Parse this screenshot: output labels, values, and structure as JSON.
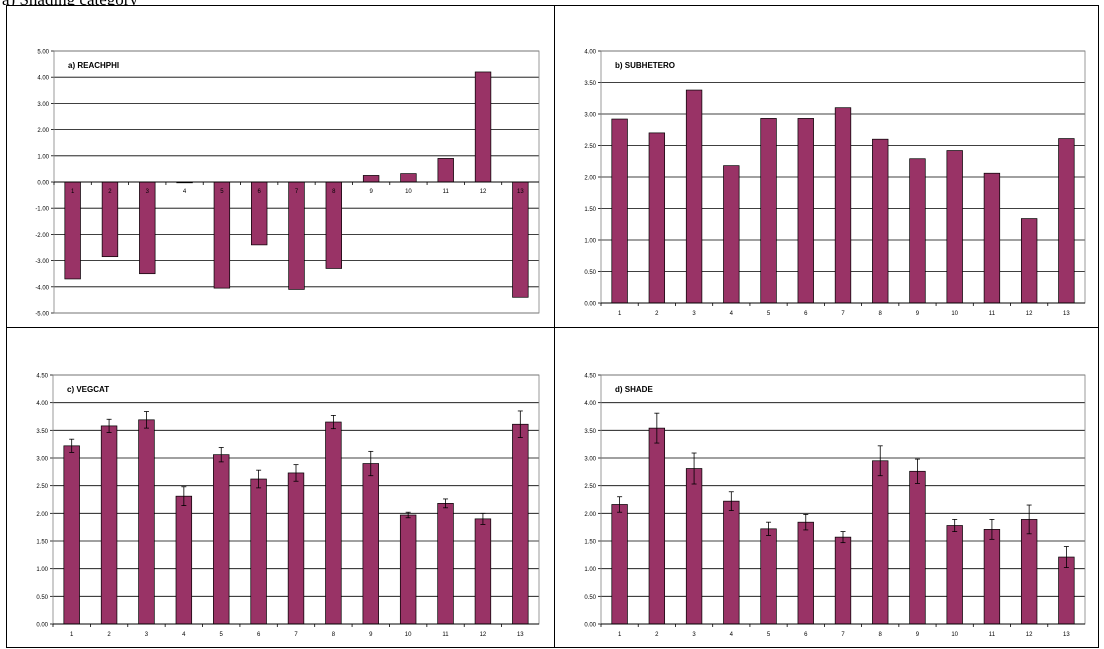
{
  "page": {
    "top_text": "a) Shading category"
  },
  "colors": {
    "bar": "#993366",
    "frame": "#000000"
  },
  "chart_data": [
    {
      "type": "bar",
      "title": "a) REACHPHI",
      "categories": [
        "1",
        "2",
        "3",
        "4",
        "5",
        "6",
        "7",
        "8",
        "9",
        "10",
        "11",
        "12",
        "13"
      ],
      "values": [
        -3.7,
        -2.85,
        -3.5,
        -0.03,
        -4.05,
        -2.4,
        -4.1,
        -3.3,
        0.25,
        0.32,
        0.9,
        4.2,
        -4.4
      ],
      "ylim": [
        -5,
        5
      ],
      "yticks": [
        "-5.00",
        "-4.00",
        "-3.00",
        "-2.00",
        "-1.00",
        "0.00",
        "1.00",
        "2.00",
        "3.00",
        "4.00",
        "5.00"
      ],
      "grid": true,
      "category_labels_on_zero_line": true,
      "error_bars": null
    },
    {
      "type": "bar",
      "title": "b) SUBHETERO",
      "categories": [
        "1",
        "2",
        "3",
        "4",
        "5",
        "6",
        "7",
        "8",
        "9",
        "10",
        "11",
        "12",
        "13"
      ],
      "values": [
        2.92,
        2.7,
        3.38,
        2.18,
        2.93,
        2.93,
        3.1,
        2.6,
        2.29,
        2.42,
        2.06,
        1.34,
        2.61
      ],
      "ylim": [
        0,
        4
      ],
      "yticks": [
        "0.00",
        "0.50",
        "1.00",
        "1.50",
        "2.00",
        "2.50",
        "3.00",
        "3.50",
        "4.00"
      ],
      "grid": true,
      "error_bars": null
    },
    {
      "type": "bar",
      "title": "c) VEGCAT",
      "categories": [
        "1",
        "2",
        "3",
        "4",
        "5",
        "6",
        "7",
        "8",
        "9",
        "10",
        "11",
        "12",
        "13"
      ],
      "values": [
        3.22,
        3.58,
        3.69,
        2.31,
        3.06,
        2.62,
        2.73,
        3.65,
        2.9,
        1.97,
        2.18,
        1.9,
        3.61
      ],
      "errors": [
        0.12,
        0.12,
        0.15,
        0.17,
        0.13,
        0.16,
        0.15,
        0.12,
        0.22,
        0.05,
        0.08,
        0.1,
        0.24
      ],
      "ylim": [
        0,
        4.5
      ],
      "yticks": [
        "0.00",
        "0.50",
        "1.00",
        "1.50",
        "2.00",
        "2.50",
        "3.00",
        "3.50",
        "4.00",
        "4.50"
      ],
      "grid": true
    },
    {
      "type": "bar",
      "title": "d) SHADE",
      "categories": [
        "1",
        "2",
        "3",
        "4",
        "5",
        "6",
        "7",
        "8",
        "9",
        "10",
        "11",
        "12",
        "13"
      ],
      "values": [
        2.16,
        3.54,
        2.81,
        2.22,
        1.72,
        1.84,
        1.57,
        2.95,
        2.76,
        1.78,
        1.71,
        1.89,
        1.21
      ],
      "errors": [
        0.14,
        0.27,
        0.28,
        0.17,
        0.12,
        0.14,
        0.1,
        0.27,
        0.22,
        0.11,
        0.18,
        0.26,
        0.19
      ],
      "ylim": [
        0,
        4.5
      ],
      "yticks": [
        "0.00",
        "0.50",
        "1.00",
        "1.50",
        "2.00",
        "2.50",
        "3.00",
        "3.50",
        "4.00",
        "4.50"
      ],
      "grid": true
    }
  ]
}
